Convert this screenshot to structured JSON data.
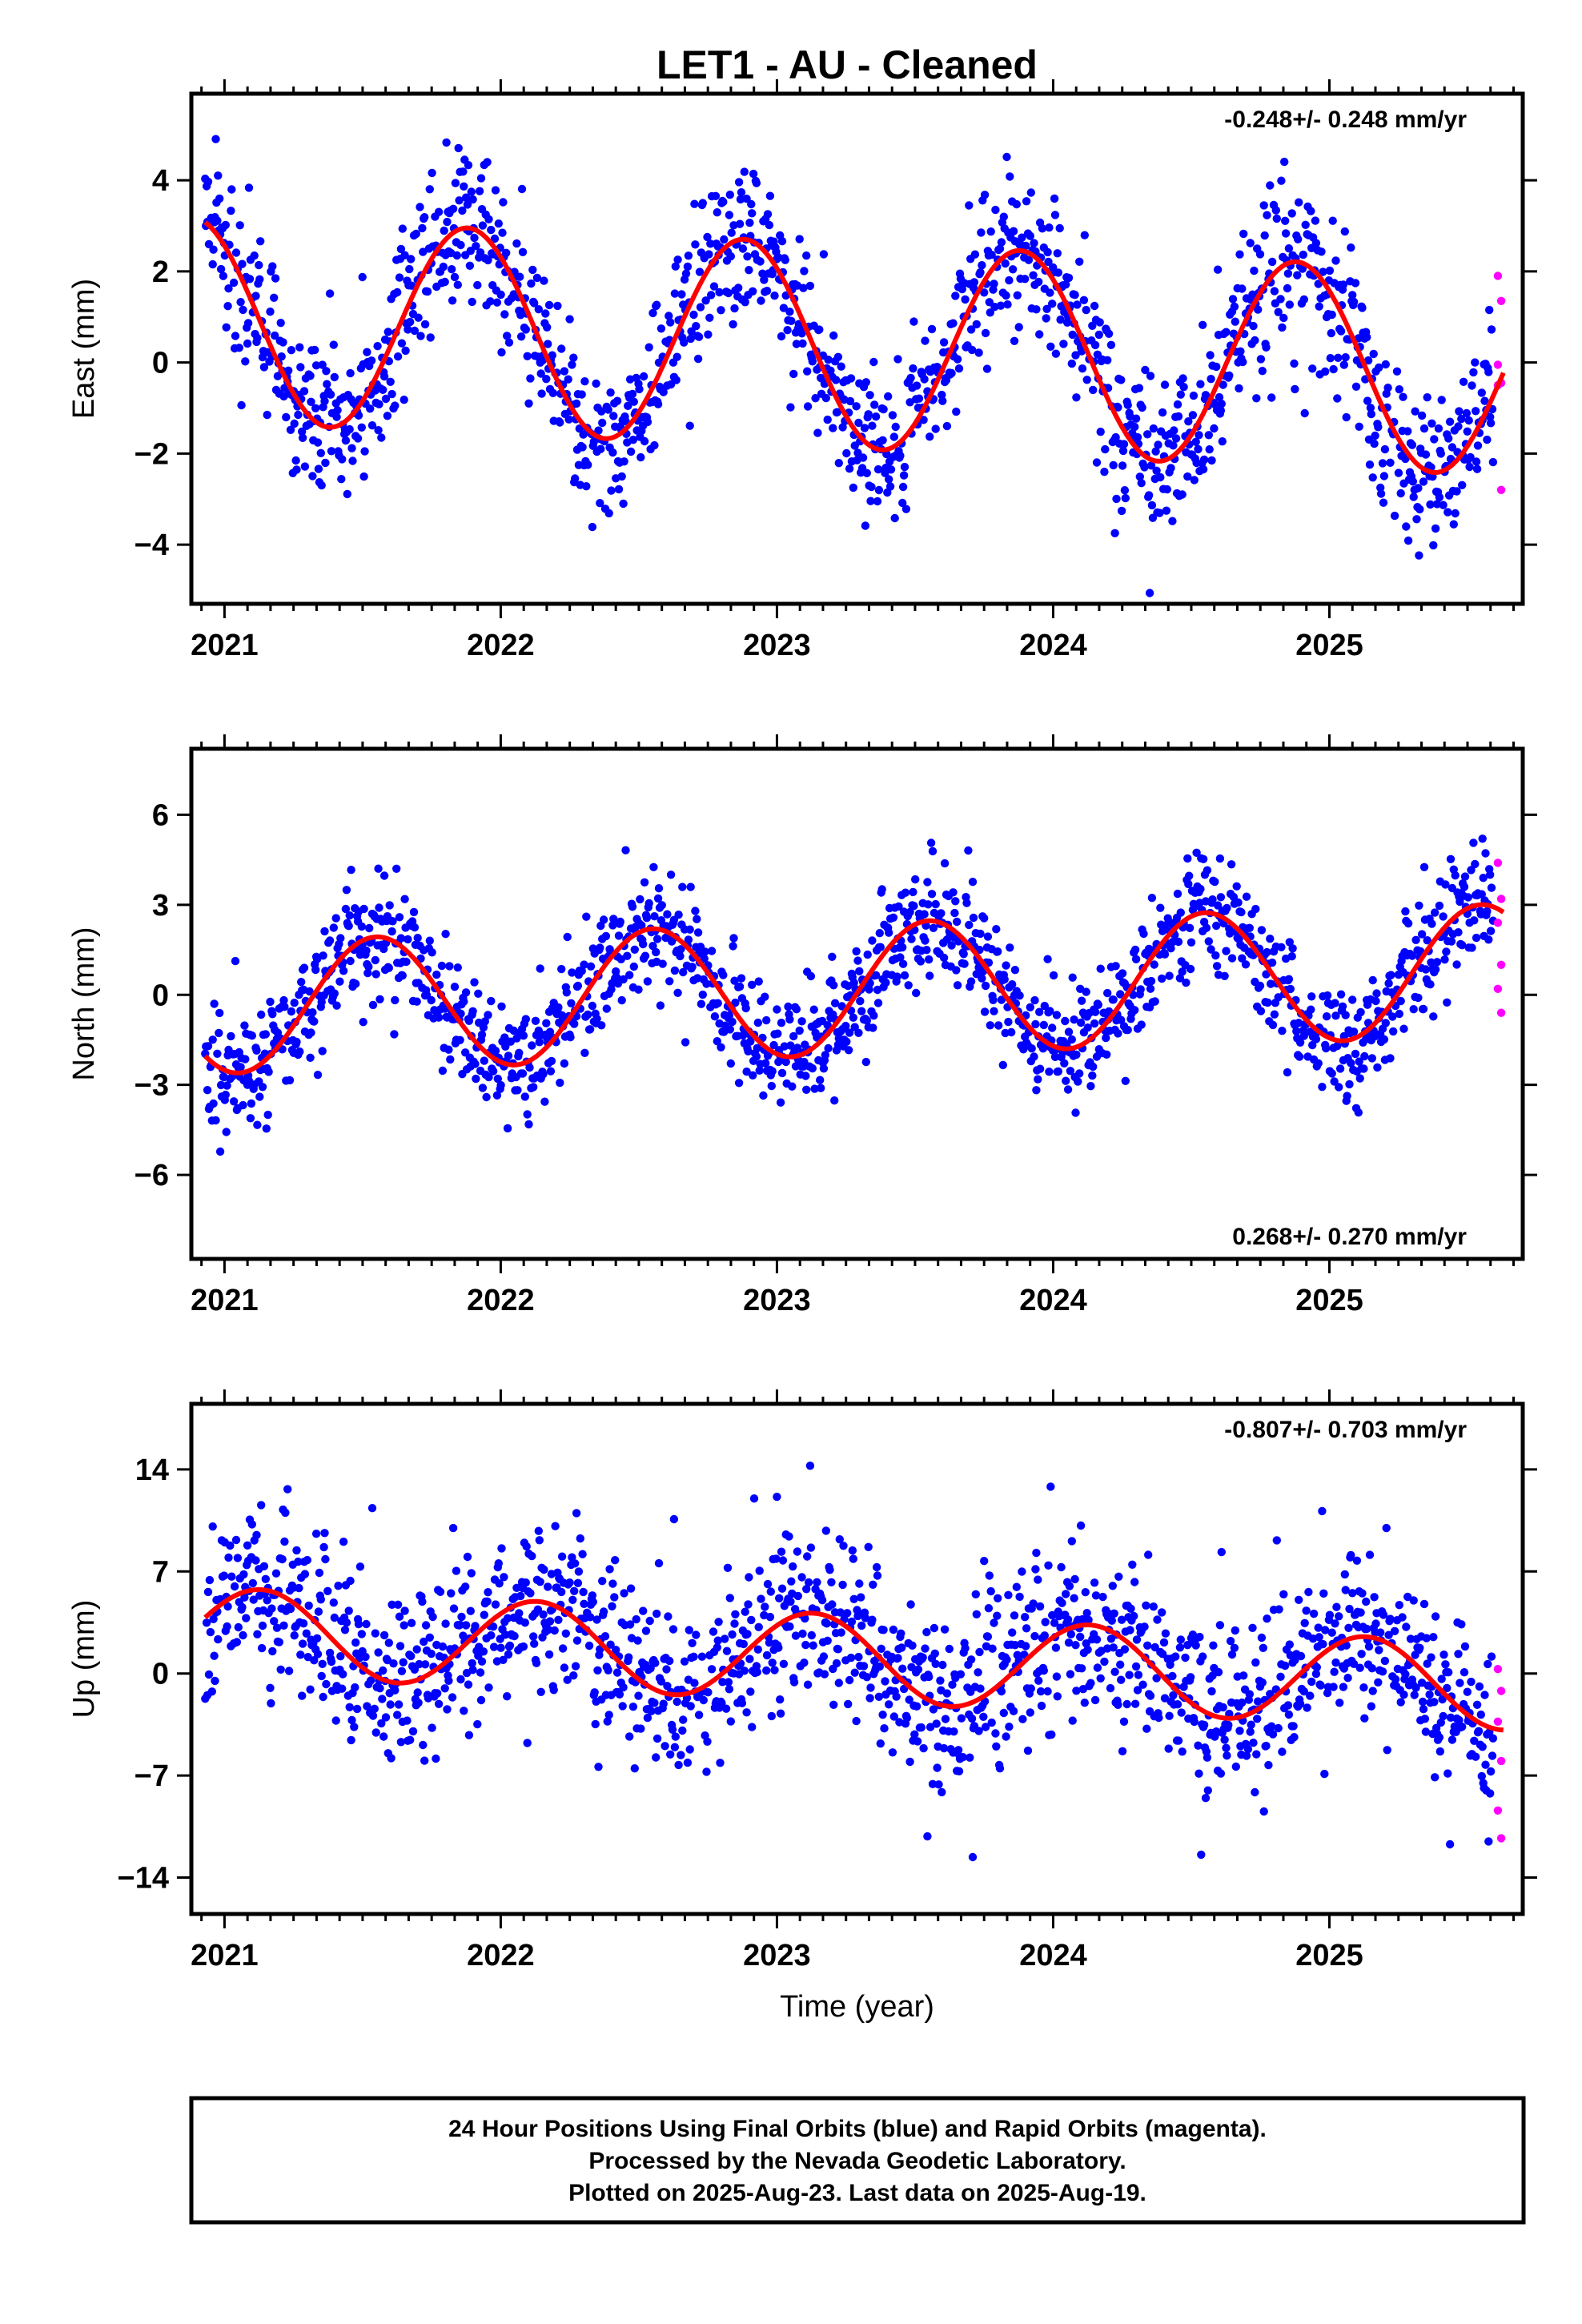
{
  "title": "LET1  - AU - Cleaned",
  "footer": [
    "24 Hour Positions Using Final Orbits (blue) and Rapid Orbits (magenta).",
    "Processed by the Nevada Geodetic Laboratory.",
    "Plotted on 2025-Aug-23. Last data on 2025-Aug-19."
  ],
  "colors": {
    "final": "#0000ff",
    "rapid": "#ff00ff",
    "model": "#ff0000",
    "frame": "#000000"
  },
  "chart_data": [
    {
      "type": "scatter",
      "ylabel": "East (mm)",
      "xlabel": "",
      "rate_text": "-0.248+/- 0.248 mm/yr",
      "rate_position": "top-right",
      "xlim": [
        2020.88,
        2025.7
      ],
      "ylim": [
        -5.3,
        5.9
      ],
      "xticks": [
        2021,
        2022,
        2023,
        2024,
        2025
      ],
      "yticks": [
        -4,
        -2,
        0,
        2,
        4
      ],
      "model": {
        "offset": 0.35,
        "trend": -0.248,
        "t0": 2023.3,
        "amplitude": 2.25,
        "phase_year": 2021.88
      },
      "noise": 0.9,
      "rapid_y": [
        1.9,
        1.35,
        -0.05,
        -0.45,
        -0.5,
        -2.8
      ]
    },
    {
      "type": "scatter",
      "ylabel": "North (mm)",
      "xlabel": "",
      "rate_text": "0.268+/- 0.270 mm/yr",
      "rate_position": "bottom-right",
      "xlim": [
        2020.88,
        2025.7
      ],
      "ylim": [
        -8.8,
        8.2
      ],
      "xticks": [
        2021,
        2022,
        2023,
        2024,
        2025
      ],
      "yticks": [
        -6,
        -3,
        0,
        3,
        6
      ],
      "model": {
        "offset": 0.2,
        "trend": 0.268,
        "t0": 2023.3,
        "amplitude": 2.2,
        "phase_year": 2021.55
      },
      "noise": 1.0,
      "rapid_y": [
        4.4,
        3.2,
        2.4,
        1.0,
        0.2,
        -0.6
      ]
    },
    {
      "type": "scatter",
      "ylabel": "Up (mm)",
      "xlabel": "Time (year)",
      "rate_text": "-0.807+/- 0.703 mm/yr",
      "rate_position": "top-right",
      "xlim": [
        2020.88,
        2025.7
      ],
      "ylim": [
        -16.5,
        18.5
      ],
      "xticks": [
        2021,
        2022,
        2023,
        2024,
        2025
      ],
      "yticks": [
        -14,
        -7,
        0,
        7,
        14
      ],
      "model": {
        "offset": 1.0,
        "trend": -0.807,
        "t0": 2023.3,
        "amplitude": 3.0,
        "phase_year": 2021.13
      },
      "noise": 3.0,
      "rapid_y": [
        0.3,
        -1.2,
        -3.3,
        -6.0,
        -9.4,
        -11.3
      ]
    }
  ]
}
